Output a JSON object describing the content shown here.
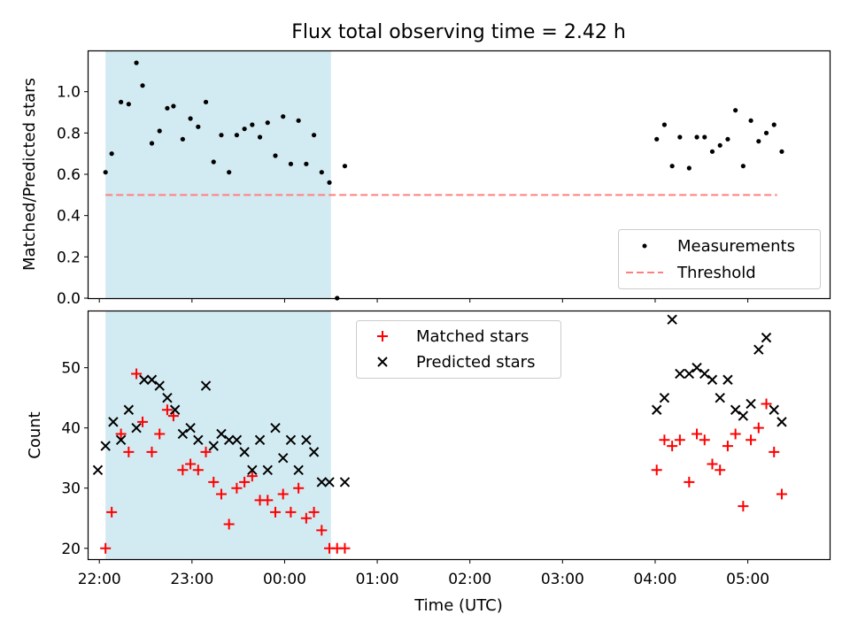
{
  "title": "Flux total observing time = 2.42 h",
  "xlabel": "Time (UTC)",
  "x_ticks": [
    "22:00",
    "23:00",
    "00:00",
    "01:00",
    "02:00",
    "03:00",
    "04:00",
    "05:00"
  ],
  "colors": {
    "shade": "#add8e6",
    "threshold": "#ff7f7f",
    "measurements": "#000000",
    "matched": "#ff0000",
    "predicted": "#000000"
  },
  "chart_data": [
    {
      "type": "scatter",
      "panel": "top",
      "ylabel": "Matched/Predicted stars",
      "xlim": [
        "21:53",
        "05:53"
      ],
      "ylim": [
        0,
        1.2
      ],
      "y_ticks": [
        "0.0",
        "0.2",
        "0.4",
        "0.6",
        "0.8",
        "1.0"
      ],
      "y_tick_values": [
        0,
        0.2,
        0.4,
        0.6,
        0.8,
        1.0
      ],
      "shaded_span": [
        "22:04",
        "00:30"
      ],
      "legend": {
        "position": "lower right",
        "entries": [
          "Measurements",
          "Threshold"
        ]
      },
      "threshold": {
        "name": "Threshold",
        "y": 0.5,
        "x": [
          "22:04",
          "05:19"
        ]
      },
      "series": [
        {
          "name": "Measurements",
          "x": [
            "22:04",
            "22:08",
            "22:14",
            "22:19",
            "22:24",
            "22:28",
            "22:34",
            "22:39",
            "22:44",
            "22:48",
            "22:54",
            "22:59",
            "23:04",
            "23:09",
            "23:14",
            "23:19",
            "23:24",
            "23:29",
            "23:34",
            "23:39",
            "23:44",
            "23:49",
            "23:54",
            "23:59",
            "00:04",
            "00:09",
            "00:14",
            "00:19",
            "00:24",
            "00:29",
            "00:34",
            "00:39",
            "04:01",
            "04:06",
            "04:11",
            "04:16",
            "04:22",
            "04:27",
            "04:32",
            "04:37",
            "04:42",
            "04:47",
            "04:52",
            "04:57",
            "05:02",
            "05:07",
            "05:12",
            "05:17",
            "05:22"
          ],
          "y": [
            0.61,
            0.7,
            0.95,
            0.94,
            1.14,
            1.03,
            0.75,
            0.81,
            0.92,
            0.93,
            0.77,
            0.87,
            0.83,
            0.95,
            0.66,
            0.79,
            0.61,
            0.79,
            0.82,
            0.84,
            0.78,
            0.85,
            0.69,
            0.88,
            0.65,
            0.86,
            0.65,
            0.79,
            0.61,
            0.56,
            0.0,
            0.64,
            0.77,
            0.84,
            0.64,
            0.78,
            0.63,
            0.78,
            0.78,
            0.71,
            0.74,
            0.77,
            0.91,
            0.64,
            0.86,
            0.76,
            0.8,
            0.84,
            0.71
          ]
        }
      ]
    },
    {
      "type": "scatter",
      "panel": "bottom",
      "ylabel": "Count",
      "xlim": [
        "21:53",
        "05:53"
      ],
      "ylim": [
        18.2,
        59.5
      ],
      "y_ticks": [
        "20",
        "30",
        "40",
        "50"
      ],
      "y_tick_values": [
        20,
        30,
        40,
        50
      ],
      "shaded_span": [
        "22:04",
        "00:30"
      ],
      "legend": {
        "position": "upper center",
        "entries": [
          "Matched stars",
          "Predicted stars"
        ]
      },
      "series": [
        {
          "name": "Matched stars",
          "marker": "+",
          "x": [
            "22:04",
            "22:08",
            "22:14",
            "22:19",
            "22:24",
            "22:28",
            "22:34",
            "22:39",
            "22:44",
            "22:48",
            "22:54",
            "22:59",
            "23:04",
            "23:09",
            "23:14",
            "23:19",
            "23:24",
            "23:29",
            "23:34",
            "23:39",
            "23:44",
            "23:49",
            "23:54",
            "23:59",
            "00:04",
            "00:09",
            "00:14",
            "00:19",
            "00:24",
            "00:29",
            "00:34",
            "00:39",
            "04:01",
            "04:06",
            "04:11",
            "04:16",
            "04:22",
            "04:27",
            "04:32",
            "04:37",
            "04:42",
            "04:47",
            "04:52",
            "04:57",
            "05:02",
            "05:07",
            "05:12",
            "05:17",
            "05:22"
          ],
          "y": [
            20,
            26,
            39,
            36,
            49,
            41,
            36,
            39,
            43,
            42,
            33,
            34,
            33,
            36,
            31,
            29,
            24,
            30,
            31,
            32,
            28,
            28,
            26,
            29,
            26,
            30,
            25,
            26,
            23,
            20,
            20,
            20,
            33,
            38,
            37,
            38,
            31,
            39,
            38,
            34,
            33,
            37,
            39,
            27,
            38,
            40,
            44,
            36,
            29
          ]
        },
        {
          "name": "Predicted stars",
          "marker": "x",
          "x": [
            "21:59",
            "22:04",
            "22:09",
            "22:14",
            "22:19",
            "22:24",
            "22:29",
            "22:34",
            "22:39",
            "22:44",
            "22:49",
            "22:54",
            "22:59",
            "23:04",
            "23:09",
            "23:14",
            "23:19",
            "23:24",
            "23:29",
            "23:34",
            "23:39",
            "23:44",
            "23:49",
            "23:54",
            "23:59",
            "00:04",
            "00:09",
            "00:14",
            "00:19",
            "00:24",
            "00:29",
            "00:39",
            "04:01",
            "04:06",
            "04:11",
            "04:16",
            "04:22",
            "04:27",
            "04:32",
            "04:37",
            "04:42",
            "04:47",
            "04:52",
            "04:57",
            "05:02",
            "05:07",
            "05:12",
            "05:17",
            "05:22"
          ],
          "y": [
            33,
            37,
            41,
            38,
            43,
            40,
            48,
            48,
            47,
            45,
            43,
            39,
            40,
            38,
            47,
            37,
            39,
            38,
            38,
            36,
            33,
            38,
            33,
            40,
            35,
            38,
            33,
            38,
            36,
            31,
            31,
            31,
            43,
            45,
            58,
            49,
            49,
            50,
            49,
            48,
            45,
            48,
            43,
            42,
            44,
            53,
            55,
            43,
            41
          ]
        }
      ]
    }
  ]
}
